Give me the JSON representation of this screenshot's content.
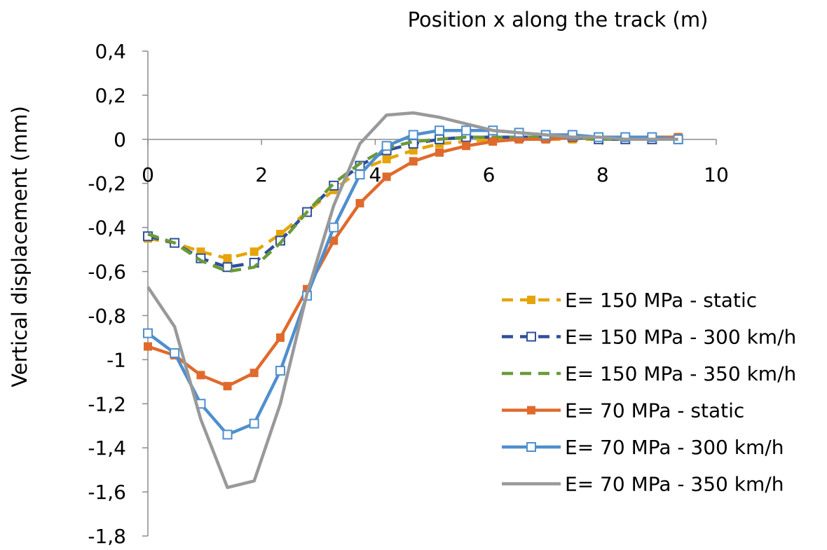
{
  "chart_data": {
    "type": "line",
    "title": "",
    "xlabel": "Position x along the track  (m)",
    "ylabel": "Vertical displacement (mm)",
    "xlim": [
      0,
      10
    ],
    "ylim": [
      -1.8,
      0.4
    ],
    "x_ticks": [
      0,
      2,
      4,
      6,
      8,
      10
    ],
    "x_tick_labels": [
      "0",
      "2",
      "4",
      "6",
      "8",
      "10"
    ],
    "y_ticks": [
      0.4,
      0.2,
      0,
      -0.2,
      -0.4,
      -0.6,
      -0.8,
      -1,
      -1.2,
      -1.4,
      -1.6,
      -1.8
    ],
    "y_tick_labels": [
      "0,4",
      "0,2",
      "0",
      "-0,2",
      "-0,4",
      "-0,6",
      "-0,8",
      "-1",
      "-1,2",
      "-1,4",
      "-1,6",
      "-1,8"
    ],
    "grid": false,
    "legend_position": "right",
    "series": [
      {
        "name": "E= 150 MPa - static",
        "color": "#e5a50a",
        "line_style": "dashed",
        "marker": "filled-square",
        "x": [
          0,
          0.47,
          0.93,
          1.4,
          1.87,
          2.33,
          2.8,
          3.27,
          3.73,
          4.2,
          4.67,
          5.13,
          5.6,
          6.07,
          6.53,
          7.0,
          7.47,
          7.93,
          8.4,
          8.87,
          9.33
        ],
        "y": [
          -0.45,
          -0.47,
          -0.51,
          -0.54,
          -0.51,
          -0.43,
          -0.33,
          -0.23,
          -0.14,
          -0.09,
          -0.05,
          -0.02,
          -0.01,
          0.0,
          0.0,
          0.0,
          0.0,
          0.0,
          0.0,
          0.0,
          0.0
        ]
      },
      {
        "name": "E= 150 MPa - 300 km/h",
        "color": "#2e4f9a",
        "line_style": "dashed",
        "marker": "open-square",
        "x": [
          0,
          0.47,
          0.93,
          1.4,
          1.87,
          2.33,
          2.8,
          3.27,
          3.73,
          4.2,
          4.67,
          5.13,
          5.6,
          6.07,
          6.53,
          7.0,
          7.47,
          7.93,
          8.4,
          8.87,
          9.33
        ],
        "y": [
          -0.44,
          -0.47,
          -0.54,
          -0.58,
          -0.56,
          -0.46,
          -0.33,
          -0.21,
          -0.12,
          -0.05,
          -0.02,
          0.0,
          0.01,
          0.01,
          0.01,
          0.01,
          0.01,
          0.0,
          0.0,
          0.0,
          0.0
        ]
      },
      {
        "name": "E= 150 MPa - 350 km/h",
        "color": "#6a9a3a",
        "line_style": "dashed",
        "marker": "none",
        "x": [
          0,
          0.47,
          0.93,
          1.4,
          1.87,
          2.33,
          2.8,
          3.27,
          3.73,
          4.2,
          4.67,
          5.13,
          5.6,
          6.07,
          6.53,
          7.0,
          7.47,
          7.93,
          8.4,
          8.87,
          9.33
        ],
        "y": [
          -0.43,
          -0.47,
          -0.55,
          -0.6,
          -0.58,
          -0.47,
          -0.33,
          -0.2,
          -0.11,
          -0.04,
          -0.01,
          0.0,
          0.01,
          0.01,
          0.01,
          0.01,
          0.01,
          0.0,
          0.0,
          0.0,
          0.0
        ]
      },
      {
        "name": "E= 70 MPa - static",
        "color": "#e06a2c",
        "line_style": "solid",
        "marker": "filled-square",
        "x": [
          0,
          0.47,
          0.93,
          1.4,
          1.87,
          2.33,
          2.8,
          3.27,
          3.73,
          4.2,
          4.67,
          5.13,
          5.6,
          6.07,
          6.53,
          7.0,
          7.47,
          7.93,
          8.4,
          8.87,
          9.33
        ],
        "y": [
          -0.94,
          -0.98,
          -1.07,
          -1.12,
          -1.06,
          -0.9,
          -0.68,
          -0.46,
          -0.29,
          -0.17,
          -0.1,
          -0.06,
          -0.03,
          -0.01,
          0.0,
          0.0,
          0.01,
          0.01,
          0.01,
          0.01,
          0.01
        ]
      },
      {
        "name": "E= 70 MPa - 300 km/h",
        "color": "#4f8fce",
        "line_style": "solid",
        "marker": "open-square",
        "x": [
          0,
          0.47,
          0.93,
          1.4,
          1.87,
          2.33,
          2.8,
          3.27,
          3.73,
          4.2,
          4.67,
          5.13,
          5.6,
          6.07,
          6.53,
          7.0,
          7.47,
          7.93,
          8.4,
          8.87,
          9.33
        ],
        "y": [
          -0.88,
          -0.97,
          -1.2,
          -1.34,
          -1.29,
          -1.05,
          -0.71,
          -0.4,
          -0.16,
          -0.03,
          0.02,
          0.04,
          0.04,
          0.04,
          0.03,
          0.02,
          0.02,
          0.01,
          0.01,
          0.01,
          0.0
        ]
      },
      {
        "name": "E= 70 MPa - 350 km/h",
        "color": "#999999",
        "line_style": "solid",
        "marker": "none",
        "x": [
          0,
          0.47,
          0.93,
          1.4,
          1.87,
          2.33,
          2.8,
          3.27,
          3.73,
          4.2,
          4.67,
          5.13,
          5.6,
          6.07,
          6.53,
          7.0,
          7.47,
          7.93,
          8.4,
          8.87,
          9.33
        ],
        "y": [
          -0.67,
          -0.85,
          -1.27,
          -1.58,
          -1.55,
          -1.2,
          -0.7,
          -0.3,
          -0.02,
          0.11,
          0.12,
          0.1,
          0.07,
          0.04,
          0.03,
          0.02,
          0.01,
          0.01,
          0.0,
          0.0,
          0.0
        ]
      }
    ]
  }
}
